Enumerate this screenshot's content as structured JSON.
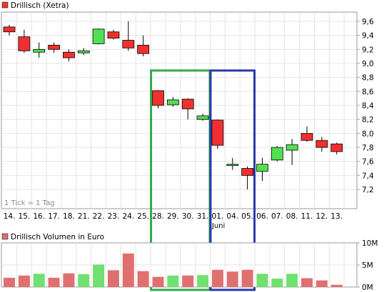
{
  "chart_data": [
    {
      "type": "candlestick",
      "title": "Drillisch (Xetra)",
      "legend_color": "#ff3030",
      "note": "1 Tick = 1 Tag",
      "x_labels": [
        "14.",
        "15.",
        "16.",
        "17.",
        "18.",
        "21.",
        "22.",
        "23.",
        "24.",
        "25.",
        "28.",
        "29.",
        "30.",
        "31.",
        "01.",
        "04.",
        "05.",
        "06.",
        "07.",
        "08.",
        "11.",
        "12.",
        "13."
      ],
      "x_sublabel": {
        "index": 14,
        "text": "Juni"
      },
      "ylim": [
        7.0,
        9.8
      ],
      "y_ticks": [
        "9,6",
        "9,4",
        "9,2",
        "9,0",
        "8,8",
        "8,6",
        "8,4",
        "8,2",
        "8,0",
        "7,8",
        "7,6",
        "7,4",
        "7,2"
      ],
      "y_tick_values": [
        9.6,
        9.4,
        9.2,
        9.0,
        8.8,
        8.6,
        8.4,
        8.2,
        8.0,
        7.8,
        7.6,
        7.4,
        7.2
      ],
      "grid": true,
      "candles": [
        {
          "open": 9.52,
          "close": 9.45,
          "high": 9.55,
          "low": 9.4
        },
        {
          "open": 9.38,
          "close": 9.18,
          "high": 9.48,
          "low": 9.15
        },
        {
          "open": 9.16,
          "close": 9.2,
          "high": 9.3,
          "low": 9.08
        },
        {
          "open": 9.26,
          "close": 9.2,
          "high": 9.3,
          "low": 9.15
        },
        {
          "open": 9.16,
          "close": 9.08,
          "high": 9.2,
          "low": 9.03
        },
        {
          "open": 9.15,
          "close": 9.18,
          "high": 9.22,
          "low": 9.12
        },
        {
          "open": 9.28,
          "close": 9.49,
          "high": 9.5,
          "low": 9.27
        },
        {
          "open": 9.45,
          "close": 9.36,
          "high": 9.48,
          "low": 9.34
        },
        {
          "open": 9.33,
          "close": 9.22,
          "high": 9.6,
          "low": 9.18
        },
        {
          "open": 9.26,
          "close": 9.14,
          "high": 9.4,
          "low": 9.1
        },
        {
          "open": 8.61,
          "close": 8.4,
          "high": 8.62,
          "low": 8.36
        },
        {
          "open": 8.41,
          "close": 8.48,
          "high": 8.52,
          "low": 8.38
        },
        {
          "open": 8.49,
          "close": 8.35,
          "high": 8.5,
          "low": 8.2
        },
        {
          "open": 8.2,
          "close": 8.25,
          "high": 8.28,
          "low": 8.18
        },
        {
          "open": 8.19,
          "close": 7.83,
          "high": 8.2,
          "low": 7.78
        },
        {
          "open": 7.55,
          "close": 7.55,
          "high": 7.65,
          "low": 7.48
        },
        {
          "open": 7.5,
          "close": 7.4,
          "high": 7.53,
          "low": 7.2
        },
        {
          "open": 7.46,
          "close": 7.56,
          "high": 7.65,
          "low": 7.32
        },
        {
          "open": 7.62,
          "close": 7.8,
          "high": 7.82,
          "low": 7.6
        },
        {
          "open": 7.76,
          "close": 7.84,
          "high": 7.92,
          "low": 7.55
        },
        {
          "open": 8.0,
          "close": 7.9,
          "high": 8.1,
          "low": 7.88
        },
        {
          "open": 7.9,
          "close": 7.8,
          "high": 7.95,
          "low": 7.74
        },
        {
          "open": 7.85,
          "close": 7.74,
          "high": 7.87,
          "low": 7.7
        }
      ],
      "up_color": "#50e050",
      "down_color": "#f03030",
      "highlights": [
        {
          "from_index": 10,
          "to_index": 13,
          "color": "#2eaa4a"
        },
        {
          "from_index": 14,
          "to_index": 16,
          "color": "#2a3aa8"
        }
      ]
    },
    {
      "type": "bar",
      "title": "Drillisch Volumen in Euro",
      "legend_color": "#e07070",
      "ylim": [
        0,
        10
      ],
      "y_ticks": [
        "10M",
        "5M",
        "0M"
      ],
      "y_tick_values": [
        10,
        5,
        0
      ],
      "unit": "Mio. Euro",
      "values": [
        2.1,
        2.6,
        3.0,
        2.1,
        3.1,
        2.9,
        5.1,
        3.8,
        7.6,
        3.6,
        2.3,
        2.6,
        2.6,
        2.7,
        3.9,
        3.5,
        3.9,
        3.0,
        1.9,
        3.0,
        2.0,
        1.5,
        0.5
      ],
      "colors": [
        "#e07070",
        "#e07070",
        "#70e070",
        "#e07070",
        "#e07070",
        "#70e070",
        "#70e070",
        "#e07070",
        "#e07070",
        "#e07070",
        "#e07070",
        "#70e070",
        "#e07070",
        "#70e070",
        "#e07070",
        "#e07070",
        "#e07070",
        "#70e070",
        "#70e070",
        "#70e070",
        "#e07070",
        "#e07070",
        "#e07070"
      ]
    }
  ]
}
